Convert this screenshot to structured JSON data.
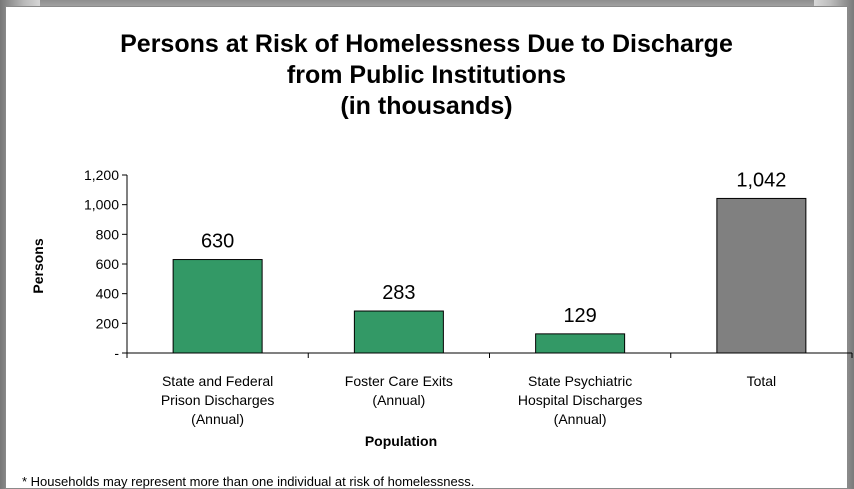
{
  "chart_data": {
    "type": "bar",
    "title_lines": [
      "Persons at Risk of Homelessness Due to Discharge",
      "from Public Institutions",
      "(in thousands)"
    ],
    "xlabel": "Population",
    "ylabel": "Persons",
    "ylim": [
      0,
      1200
    ],
    "yticks": [
      0,
      200,
      400,
      600,
      800,
      1000,
      1200
    ],
    "ytick_labels": [
      "-",
      "200",
      "400",
      "600",
      "800",
      "1,000",
      "1,200"
    ],
    "categories": [
      [
        "State and Federal",
        "Prison Discharges",
        "(Annual)"
      ],
      [
        "Foster Care Exits",
        "(Annual)"
      ],
      [
        "State Psychiatric",
        "Hospital Discharges",
        "(Annual)"
      ],
      [
        "Total"
      ]
    ],
    "values": [
      630,
      283,
      129,
      1042
    ],
    "value_labels": [
      "630",
      "283",
      "129",
      "1,042"
    ],
    "bar_colors": [
      "#339966",
      "#339966",
      "#339966",
      "#808080"
    ],
    "grid": false,
    "legend": "none"
  },
  "footnote": "* Households may represent more than one individual at risk of homelessness."
}
